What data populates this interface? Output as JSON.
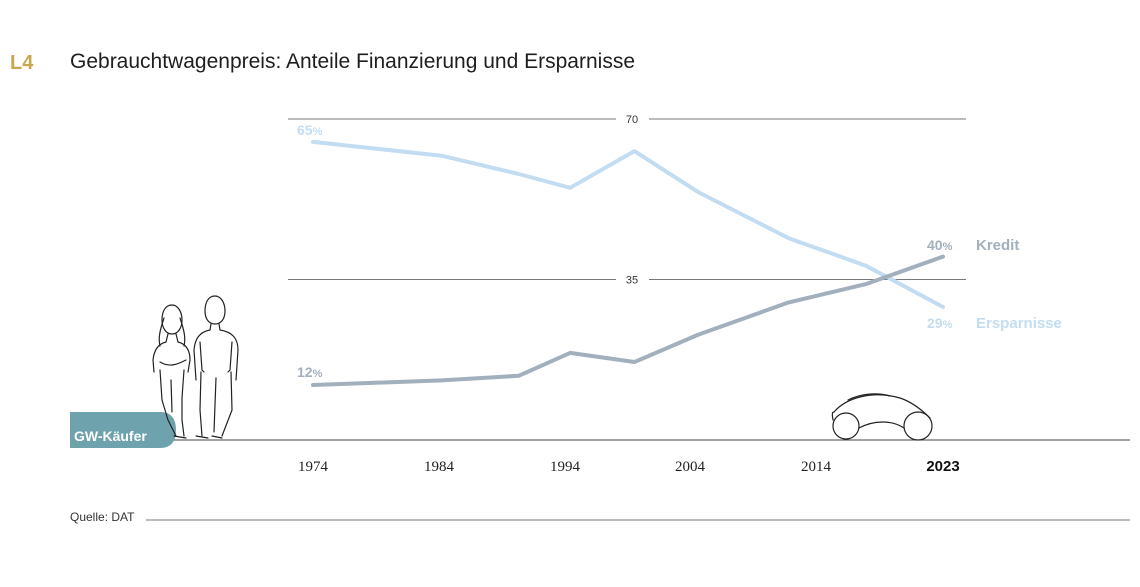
{
  "header": {
    "badge": "L4",
    "title": "Gebrauchtwagenpreis: Anteile Finanzierung und Ersparnisse"
  },
  "footer": {
    "source": "Quelle: DAT"
  },
  "colors": {
    "accent": "#c9a84c",
    "kredit": "#a2afbc",
    "ersparnisse": "#c2ddf1",
    "buyer_tag": "#6ea2ac"
  },
  "illustration": {
    "buyers_label": "GW-Käufer",
    "people_icon": "couple-figure-icon",
    "car_icon": "car-outline-icon"
  },
  "chart_data": {
    "type": "line",
    "x": [
      1974,
      1984,
      1990,
      1994,
      1999,
      2004,
      2011,
      2017,
      2023
    ],
    "xticks": [
      "1974",
      "1984",
      "1994",
      "2004",
      "2014",
      "2023"
    ],
    "xtick_bold": "2023",
    "xlim": [
      1974,
      2023
    ],
    "ylim": [
      0,
      70
    ],
    "gridlines": [
      70,
      35
    ],
    "gridline_labels": [
      "70",
      "35"
    ],
    "series": [
      {
        "name": "Kredit",
        "values": [
          12,
          13,
          14,
          19,
          17,
          23,
          30,
          34,
          40
        ],
        "first_label": "12",
        "last_label": "40",
        "unit": "%"
      },
      {
        "name": "Ersparnisse",
        "values": [
          65,
          62,
          58,
          55,
          63,
          54,
          44,
          38,
          29
        ],
        "first_label": "65",
        "last_label": "29",
        "unit": "%"
      }
    ]
  }
}
